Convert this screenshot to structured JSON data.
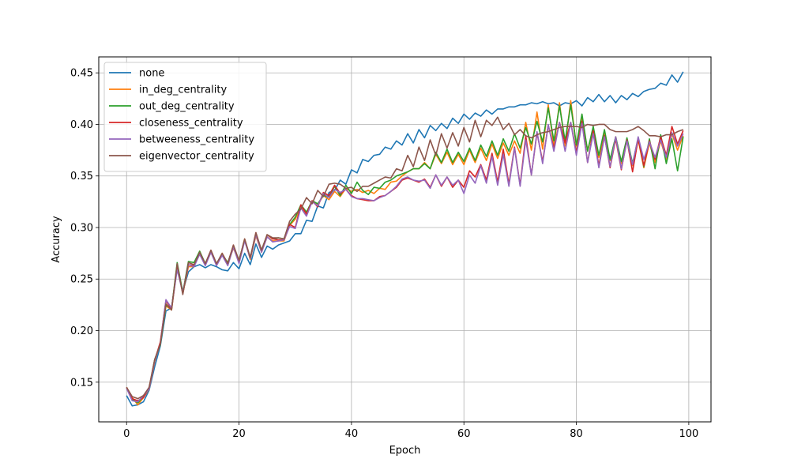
{
  "chart_data": {
    "type": "line",
    "xlabel": "Epoch",
    "ylabel": "Accuracy",
    "xlim": [
      -4.95,
      103.95
    ],
    "ylim": [
      0.1115,
      0.4655
    ],
    "xticks": [
      0,
      20,
      40,
      60,
      80,
      100
    ],
    "yticks": [
      0.15,
      0.2,
      0.25,
      0.3,
      0.35,
      0.4,
      0.45
    ],
    "ytick_labels": [
      "0.15",
      "0.20",
      "0.25",
      "0.30",
      "0.35",
      "0.40",
      "0.45"
    ],
    "grid": true,
    "legend_position": "top-left",
    "colors": {
      "none": "#1f77b4",
      "in_deg_centrality": "#ff7f0e",
      "out_deg_centrality": "#2ca02c",
      "closeness_centrality": "#d62728",
      "betweeness_centrality": "#9467bd",
      "eigenvector_centrality": "#8c564b"
    },
    "series": [
      {
        "name": "none",
        "color": "#1f77b4",
        "values": [
          0.137,
          0.127,
          0.128,
          0.131,
          0.142,
          0.165,
          0.185,
          0.219,
          0.222,
          0.262,
          0.238,
          0.257,
          0.262,
          0.264,
          0.261,
          0.264,
          0.262,
          0.259,
          0.258,
          0.266,
          0.26,
          0.275,
          0.264,
          0.284,
          0.271,
          0.282,
          0.279,
          0.283,
          0.285,
          0.287,
          0.294,
          0.294,
          0.307,
          0.306,
          0.321,
          0.319,
          0.334,
          0.336,
          0.346,
          0.342,
          0.356,
          0.353,
          0.366,
          0.364,
          0.37,
          0.371,
          0.378,
          0.376,
          0.384,
          0.38,
          0.391,
          0.382,
          0.395,
          0.387,
          0.399,
          0.394,
          0.401,
          0.396,
          0.406,
          0.401,
          0.41,
          0.405,
          0.411,
          0.408,
          0.414,
          0.41,
          0.415,
          0.415,
          0.417,
          0.417,
          0.419,
          0.419,
          0.421,
          0.42,
          0.422,
          0.42,
          0.421,
          0.418,
          0.421,
          0.42,
          0.423,
          0.418,
          0.426,
          0.422,
          0.429,
          0.422,
          0.428,
          0.421,
          0.428,
          0.424,
          0.43,
          0.427,
          0.432,
          0.434,
          0.435,
          0.44,
          0.438,
          0.448,
          0.441,
          0.451
        ]
      },
      {
        "name": "in_deg_centrality",
        "color": "#ff7f0e",
        "values": [
          0.145,
          0.135,
          0.128,
          0.135,
          0.143,
          0.17,
          0.188,
          0.224,
          0.22,
          0.262,
          0.236,
          0.262,
          0.262,
          0.277,
          0.264,
          0.276,
          0.264,
          0.275,
          0.265,
          0.28,
          0.267,
          0.289,
          0.269,
          0.292,
          0.276,
          0.291,
          0.287,
          0.287,
          0.287,
          0.302,
          0.308,
          0.32,
          0.313,
          0.325,
          0.322,
          0.331,
          0.327,
          0.335,
          0.33,
          0.338,
          0.335,
          0.337,
          0.334,
          0.336,
          0.333,
          0.338,
          0.337,
          0.344,
          0.345,
          0.35,
          0.354,
          0.357,
          0.357,
          0.363,
          0.357,
          0.371,
          0.362,
          0.373,
          0.361,
          0.371,
          0.361,
          0.375,
          0.363,
          0.377,
          0.365,
          0.381,
          0.367,
          0.382,
          0.37,
          0.384,
          0.372,
          0.402,
          0.375,
          0.412,
          0.376,
          0.419,
          0.378,
          0.421,
          0.379,
          0.423,
          0.379,
          0.406,
          0.375,
          0.394,
          0.368,
          0.392,
          0.365,
          0.388,
          0.362,
          0.385,
          0.36,
          0.385,
          0.358,
          0.382,
          0.363,
          0.384,
          0.366,
          0.391,
          0.375,
          0.389
        ]
      },
      {
        "name": "out_deg_centrality",
        "color": "#2ca02c",
        "values": [
          0.145,
          0.133,
          0.13,
          0.136,
          0.143,
          0.172,
          0.186,
          0.225,
          0.221,
          0.266,
          0.237,
          0.267,
          0.266,
          0.277,
          0.265,
          0.277,
          0.264,
          0.274,
          0.266,
          0.282,
          0.268,
          0.288,
          0.27,
          0.294,
          0.278,
          0.293,
          0.289,
          0.29,
          0.289,
          0.303,
          0.31,
          0.322,
          0.315,
          0.326,
          0.323,
          0.331,
          0.33,
          0.34,
          0.331,
          0.341,
          0.333,
          0.344,
          0.336,
          0.332,
          0.339,
          0.338,
          0.344,
          0.346,
          0.35,
          0.352,
          0.354,
          0.357,
          0.357,
          0.362,
          0.357,
          0.373,
          0.363,
          0.376,
          0.363,
          0.373,
          0.364,
          0.377,
          0.365,
          0.38,
          0.369,
          0.384,
          0.37,
          0.386,
          0.374,
          0.391,
          0.377,
          0.397,
          0.381,
          0.403,
          0.383,
          0.416,
          0.384,
          0.418,
          0.384,
          0.419,
          0.38,
          0.41,
          0.374,
          0.398,
          0.37,
          0.395,
          0.366,
          0.388,
          0.364,
          0.387,
          0.362,
          0.387,
          0.359,
          0.386,
          0.357,
          0.39,
          0.362,
          0.386,
          0.355,
          0.388
        ]
      },
      {
        "name": "closeness_centrality",
        "color": "#d62728",
        "values": [
          0.145,
          0.134,
          0.132,
          0.135,
          0.144,
          0.171,
          0.189,
          0.229,
          0.221,
          0.262,
          0.236,
          0.264,
          0.263,
          0.275,
          0.264,
          0.278,
          0.264,
          0.274,
          0.265,
          0.283,
          0.266,
          0.288,
          0.27,
          0.295,
          0.277,
          0.293,
          0.289,
          0.288,
          0.288,
          0.303,
          0.3,
          0.322,
          0.313,
          0.326,
          0.32,
          0.334,
          0.331,
          0.341,
          0.333,
          0.337,
          0.331,
          0.328,
          0.327,
          0.326,
          0.326,
          0.33,
          0.331,
          0.335,
          0.339,
          0.346,
          0.348,
          0.346,
          0.344,
          0.347,
          0.339,
          0.351,
          0.34,
          0.349,
          0.339,
          0.346,
          0.339,
          0.355,
          0.349,
          0.361,
          0.346,
          0.372,
          0.344,
          0.376,
          0.342,
          0.378,
          0.341,
          0.389,
          0.351,
          0.392,
          0.364,
          0.399,
          0.377,
          0.402,
          0.382,
          0.402,
          0.373,
          0.403,
          0.363,
          0.394,
          0.36,
          0.389,
          0.358,
          0.386,
          0.356,
          0.385,
          0.354,
          0.386,
          0.36,
          0.384,
          0.366,
          0.388,
          0.37,
          0.398,
          0.381,
          0.394
        ]
      },
      {
        "name": "betweeness_centrality",
        "color": "#9467bd",
        "values": [
          0.144,
          0.132,
          0.131,
          0.137,
          0.143,
          0.171,
          0.187,
          0.23,
          0.222,
          0.259,
          0.237,
          0.264,
          0.262,
          0.274,
          0.263,
          0.276,
          0.263,
          0.273,
          0.263,
          0.281,
          0.265,
          0.287,
          0.27,
          0.293,
          0.276,
          0.291,
          0.286,
          0.287,
          0.288,
          0.301,
          0.299,
          0.319,
          0.311,
          0.325,
          0.321,
          0.333,
          0.329,
          0.337,
          0.334,
          0.337,
          0.33,
          0.328,
          0.328,
          0.327,
          0.326,
          0.329,
          0.331,
          0.335,
          0.34,
          0.347,
          0.349,
          0.346,
          0.345,
          0.346,
          0.338,
          0.351,
          0.341,
          0.349,
          0.341,
          0.346,
          0.333,
          0.351,
          0.343,
          0.36,
          0.343,
          0.369,
          0.341,
          0.371,
          0.34,
          0.377,
          0.34,
          0.385,
          0.351,
          0.393,
          0.362,
          0.4,
          0.374,
          0.402,
          0.374,
          0.402,
          0.37,
          0.401,
          0.363,
          0.391,
          0.358,
          0.388,
          0.359,
          0.388,
          0.357,
          0.384,
          0.361,
          0.388,
          0.366,
          0.383,
          0.368,
          0.385,
          0.368,
          0.392,
          0.379,
          0.391
        ]
      },
      {
        "name": "eigenvector_centrality",
        "color": "#8c564b",
        "values": [
          0.145,
          0.136,
          0.134,
          0.137,
          0.145,
          0.172,
          0.187,
          0.226,
          0.22,
          0.265,
          0.235,
          0.266,
          0.264,
          0.276,
          0.265,
          0.278,
          0.265,
          0.275,
          0.265,
          0.283,
          0.268,
          0.289,
          0.271,
          0.295,
          0.278,
          0.293,
          0.29,
          0.29,
          0.289,
          0.306,
          0.313,
          0.318,
          0.329,
          0.323,
          0.336,
          0.33,
          0.342,
          0.343,
          0.342,
          0.338,
          0.339,
          0.335,
          0.34,
          0.34,
          0.343,
          0.346,
          0.349,
          0.348,
          0.357,
          0.355,
          0.37,
          0.359,
          0.378,
          0.365,
          0.385,
          0.37,
          0.391,
          0.377,
          0.392,
          0.379,
          0.397,
          0.383,
          0.404,
          0.388,
          0.404,
          0.399,
          0.407,
          0.395,
          0.401,
          0.39,
          0.395,
          0.389,
          0.387,
          0.39,
          0.392,
          0.393,
          0.395,
          0.397,
          0.398,
          0.398,
          0.398,
          0.397,
          0.4,
          0.399,
          0.4,
          0.4,
          0.395,
          0.393,
          0.393,
          0.393,
          0.395,
          0.398,
          0.394,
          0.389,
          0.389,
          0.388,
          0.39,
          0.39,
          0.393,
          0.395
        ]
      }
    ]
  }
}
